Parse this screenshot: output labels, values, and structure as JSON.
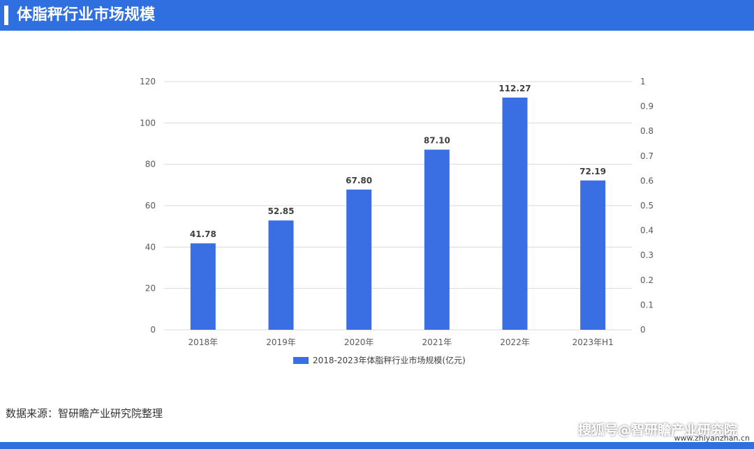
{
  "header": {
    "title": "体脂秤行业市场规模"
  },
  "chart_data": {
    "type": "bar",
    "categories": [
      "2018年",
      "2019年",
      "2020年",
      "2021年",
      "2022年",
      "2023年H1"
    ],
    "series": [
      {
        "name": "2018-2023年体脂秤行业市场规模(亿元)",
        "values": [
          41.78,
          52.85,
          67.8,
          87.1,
          112.27,
          72.19
        ],
        "labels": [
          "41.78",
          "52.85",
          "67.80",
          "87.10",
          "112.27",
          "72.19"
        ]
      }
    ],
    "y_left": {
      "min": 0,
      "max": 120,
      "step": 20,
      "ticks": [
        "0",
        "20",
        "40",
        "60",
        "80",
        "100",
        "120"
      ]
    },
    "y_right": {
      "min": 0,
      "max": 1,
      "step": 0.1,
      "ticks": [
        "0",
        "0.1",
        "0.2",
        "0.3",
        "0.4",
        "0.5",
        "0.6",
        "0.7",
        "0.8",
        "0.9",
        "1"
      ]
    },
    "grid": true,
    "legend_position": "bottom",
    "bar_color": "#3a6fe4"
  },
  "footer": {
    "source": "数据来源：智研瞻产业研究院整理",
    "brand": "搜狐号@智研瞻产业研究院",
    "site": "www.zhiyanzhan.cn"
  },
  "colors": {
    "header_bg": "#2f6fe0",
    "grid": "#d9d9d9",
    "axis_text": "#595959",
    "label_text": "#404040"
  }
}
